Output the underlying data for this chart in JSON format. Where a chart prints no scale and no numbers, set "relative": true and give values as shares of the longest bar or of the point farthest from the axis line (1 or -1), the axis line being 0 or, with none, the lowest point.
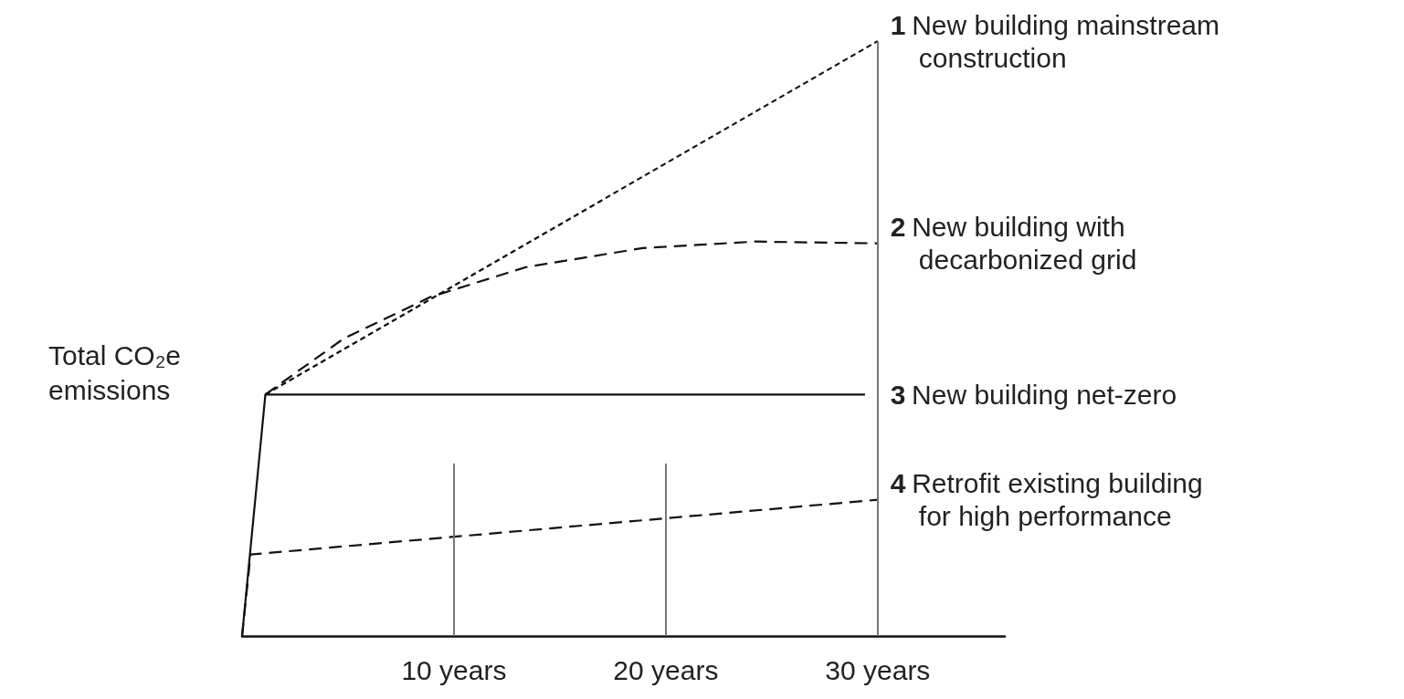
{
  "chart_data": {
    "type": "line",
    "relative": true,
    "ylabel": "Total CO₂e emissions",
    "xlim": [
      0,
      36
    ],
    "xticks": [
      {
        "value": 10,
        "label": "10 years"
      },
      {
        "value": 20,
        "label": "20 years"
      },
      {
        "value": 30,
        "label": "30 years"
      }
    ],
    "ref_lines": [
      {
        "axis": "x",
        "value": 10,
        "color": "#777777"
      },
      {
        "axis": "x",
        "value": 20,
        "color": "#777777"
      },
      {
        "axis": "x",
        "value": 30,
        "color": "#777777"
      }
    ],
    "legend": false,
    "grid": false,
    "marker": "none",
    "series": [
      {
        "name": "1 New building mainstream construction",
        "color": "#111111",
        "line_style": "dotted",
        "x": [
          1.1,
          30
        ],
        "values": [
          0.406,
          1
        ]
      },
      {
        "name": "2 New building with decarbonized grid",
        "color": "#111111",
        "line_style": "dashed",
        "x": [
          1.1,
          4.8,
          8.9,
          13.4,
          18.9,
          24.2,
          30
        ],
        "values": [
          0.406,
          0.5,
          0.57,
          0.62,
          0.652,
          0.663,
          0.66
        ]
      },
      {
        "name": "3 New building net-zero",
        "color": "#111111",
        "line_style": "solid",
        "x": [
          0,
          1.1,
          29.4
        ],
        "values": [
          0,
          0.406,
          0.406
        ]
      },
      {
        "name": "4 Retrofit existing building for high performance",
        "color": "#111111",
        "line_style": "dashed",
        "x": [
          0,
          0.4,
          30
        ],
        "values": [
          0,
          0.137,
          0.229
        ]
      }
    ]
  }
}
